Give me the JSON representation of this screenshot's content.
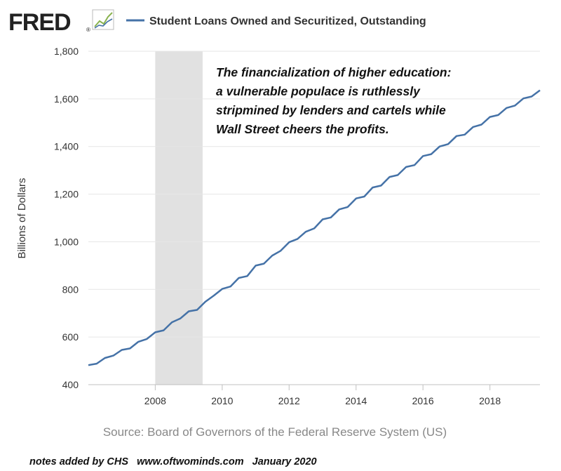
{
  "header": {
    "logo_text": "FRED",
    "logo_mark": "®",
    "legend_label": "Student Loans Owned and Securitized, Outstanding"
  },
  "annotation": {
    "lines": [
      "The financialization of higher education:",
      "a vulnerable populace is ruthlessly",
      "stripmined by lenders and cartels while",
      "Wall Street cheers the profits."
    ]
  },
  "source": "Source: Board of Governors of the Federal Reserve System (US)",
  "footer_note": "notes added by CHS   www.oftwominds.com   January 2020",
  "colors": {
    "line": "#4572a7",
    "recession": "#e1e1e1",
    "grid": "#e6e6e6",
    "axis_text": "#333333",
    "source_text": "#888888",
    "logo": "#222222"
  },
  "chart_data": {
    "type": "line",
    "title": "",
    "xlabel": "",
    "ylabel": "Billions of Dollars",
    "x_type": "date",
    "xlim": [
      "2006-01-01",
      "2019-07-01"
    ],
    "ylim": [
      400,
      1800
    ],
    "yticks": [
      400,
      600,
      800,
      1000,
      1200,
      1400,
      1600,
      1800
    ],
    "ytick_labels": [
      "400",
      "600",
      "800",
      "1,000",
      "1,200",
      "1,400",
      "1,600",
      "1,800"
    ],
    "xticks": [
      "2008-01-01",
      "2010-01-01",
      "2012-01-01",
      "2014-01-01",
      "2016-01-01",
      "2018-01-01"
    ],
    "xtick_labels": [
      "2008",
      "2010",
      "2012",
      "2014",
      "2016",
      "2018"
    ],
    "grid": "horizontal",
    "recession_shading": [
      {
        "start": "2008-01-01",
        "end": "2009-06-01"
      }
    ],
    "series": [
      {
        "name": "Student Loans Owned and Securitized, Outstanding",
        "x": [
          "2006-01-01",
          "2006-04-01",
          "2006-07-01",
          "2006-10-01",
          "2007-01-01",
          "2007-04-01",
          "2007-07-01",
          "2007-10-01",
          "2008-01-01",
          "2008-04-01",
          "2008-07-01",
          "2008-10-01",
          "2009-01-01",
          "2009-04-01",
          "2009-07-01",
          "2009-10-01",
          "2010-01-01",
          "2010-04-01",
          "2010-07-01",
          "2010-10-01",
          "2011-01-01",
          "2011-04-01",
          "2011-07-01",
          "2011-10-01",
          "2012-01-01",
          "2012-04-01",
          "2012-07-01",
          "2012-10-01",
          "2013-01-01",
          "2013-04-01",
          "2013-07-01",
          "2013-10-01",
          "2014-01-01",
          "2014-04-01",
          "2014-07-01",
          "2014-10-01",
          "2015-01-01",
          "2015-04-01",
          "2015-07-01",
          "2015-10-01",
          "2016-01-01",
          "2016-04-01",
          "2016-07-01",
          "2016-10-01",
          "2017-01-01",
          "2017-04-01",
          "2017-07-01",
          "2017-10-01",
          "2018-01-01",
          "2018-04-01",
          "2018-07-01",
          "2018-10-01",
          "2019-01-01",
          "2019-04-01",
          "2019-07-01"
        ],
        "values": [
          482,
          488,
          512,
          522,
          546,
          552,
          580,
          592,
          620,
          628,
          662,
          678,
          708,
          714,
          748,
          774,
          802,
          812,
          848,
          856,
          900,
          908,
          942,
          962,
          998,
          1012,
          1042,
          1056,
          1094,
          1102,
          1136,
          1146,
          1182,
          1190,
          1228,
          1236,
          1272,
          1280,
          1314,
          1322,
          1360,
          1368,
          1400,
          1410,
          1444,
          1450,
          1482,
          1492,
          1524,
          1532,
          1562,
          1572,
          1602,
          1610,
          1636
        ]
      }
    ]
  }
}
